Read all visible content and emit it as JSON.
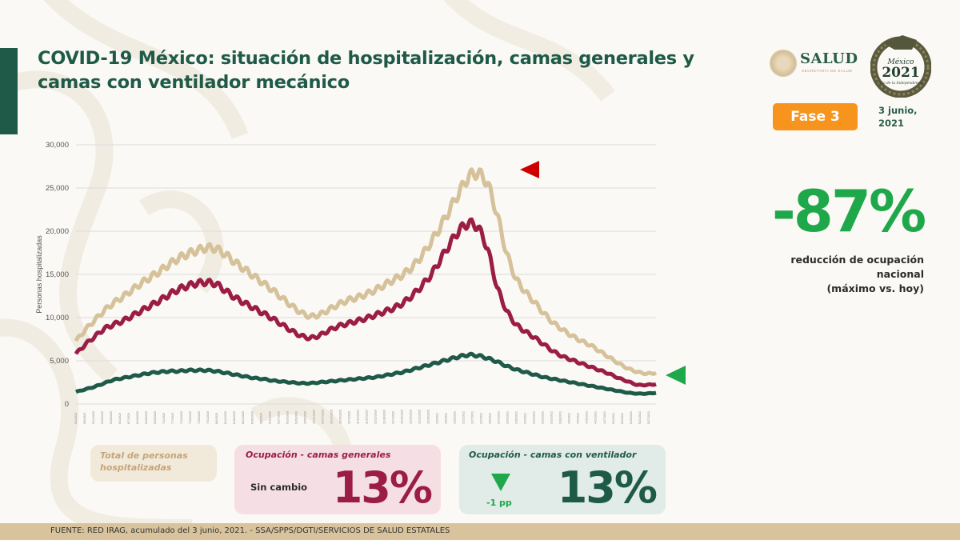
{
  "header": {
    "title": "COVID-19 México: situación de hospitalización, camas generales y camas con ventilador mecánico",
    "logo_salud": "SALUD",
    "logo_salud_sub": "SECRETARÍA DE SALUD",
    "emblem_line1": "México",
    "emblem_line2": "2021",
    "emblem_line3": "Año de la Independencia",
    "phase_label": "Fase 3",
    "date_line1": "3 junio,",
    "date_line2": "2021"
  },
  "kpi": {
    "value": "-87%",
    "caption_line1": "reducción de ocupación nacional",
    "caption_line2": "(máximo vs. hoy)",
    "color": "#1fa84a"
  },
  "cards": {
    "total": {
      "label_line1": "Total de personas",
      "label_line2": "hospitalizadas"
    },
    "general": {
      "label": "Ocupación - camas generales",
      "status": "Sin cambio",
      "value": "13%"
    },
    "ventilator": {
      "label": "Ocupación - camas con ventilador",
      "change": "-1 pp",
      "value": "13%"
    }
  },
  "footer": {
    "source": "FUENTE: RED IRAG, acumulado del 3 junio, 2021. -  SSA/SPPS/DGTI/SERVICIOS DE SALUD ESTATALES"
  },
  "colors": {
    "total": "#d6c29a",
    "general": "#9b1d45",
    "ventilator": "#1f5a48",
    "arrow_up": "#cc0000",
    "arrow_down": "#1fa84a"
  },
  "chart_data": {
    "type": "line",
    "title": "",
    "xlabel": "",
    "ylabel": "Personas hospitalizadas",
    "ylim": [
      0,
      30000
    ],
    "yticks": [
      "0",
      "5,000",
      "10,000",
      "15,000",
      "20,000",
      "25,000",
      "30,000"
    ],
    "grid": true,
    "x_start": "5/2/2020",
    "x_end": "6/1/2021",
    "x_tick_interval_days": 6,
    "sample_interval": "weekly",
    "series": [
      {
        "name": "Total de personas hospitalizadas",
        "color": "#d6c29a",
        "values": [
          7300,
          8600,
          9700,
          10800,
          11700,
          12400,
          13200,
          14000,
          14700,
          15400,
          16200,
          16900,
          17400,
          17800,
          18100,
          18000,
          17300,
          16400,
          15600,
          14800,
          14000,
          13200,
          12300,
          11400,
          10600,
          10100,
          10300,
          10900,
          11500,
          12000,
          12300,
          12700,
          13200,
          13800,
          14400,
          15000,
          15900,
          17200,
          18800,
          20600,
          22600,
          24600,
          26400,
          26800,
          25600,
          22000,
          17500,
          14500,
          13000,
          11800,
          10500,
          9400,
          8600,
          7900,
          7300,
          6800,
          6100,
          5400,
          4700,
          4100,
          3700,
          3500,
          3600
        ]
      },
      {
        "name": "Ocupación - camas generales",
        "color": "#9b1d45",
        "values": [
          5800,
          6900,
          7800,
          8700,
          9200,
          9600,
          10200,
          10800,
          11400,
          12000,
          12700,
          13300,
          13700,
          14000,
          14100,
          13900,
          13100,
          12300,
          11700,
          11100,
          10500,
          9900,
          9200,
          8500,
          7900,
          7600,
          7900,
          8500,
          9000,
          9300,
          9600,
          9900,
          10300,
          10700,
          11100,
          11700,
          12600,
          13700,
          15000,
          16800,
          18600,
          20200,
          21000,
          20500,
          18000,
          13500,
          10800,
          9200,
          8400,
          7700,
          6900,
          6100,
          5500,
          5100,
          4700,
          4300,
          3900,
          3500,
          3000,
          2600,
          2200,
          2200,
          2300
        ]
      },
      {
        "name": "Ocupación - camas con ventilador",
        "color": "#1f5a48",
        "values": [
          1400,
          1700,
          2000,
          2400,
          2800,
          3000,
          3200,
          3400,
          3600,
          3700,
          3800,
          3800,
          3900,
          3900,
          3900,
          3800,
          3600,
          3400,
          3200,
          3000,
          2900,
          2700,
          2600,
          2500,
          2400,
          2400,
          2500,
          2600,
          2700,
          2800,
          2900,
          3000,
          3100,
          3300,
          3500,
          3700,
          4000,
          4300,
          4600,
          4900,
          5200,
          5500,
          5700,
          5600,
          5300,
          4900,
          4400,
          4000,
          3700,
          3400,
          3100,
          2900,
          2700,
          2500,
          2300,
          2100,
          1900,
          1700,
          1500,
          1300,
          1200,
          1200,
          1300
        ]
      }
    ],
    "annotations": [
      {
        "type": "triangle-left",
        "color": "#cc0000",
        "at": "peak"
      },
      {
        "type": "triangle-left",
        "color": "#1fa84a",
        "at": "current"
      }
    ]
  }
}
